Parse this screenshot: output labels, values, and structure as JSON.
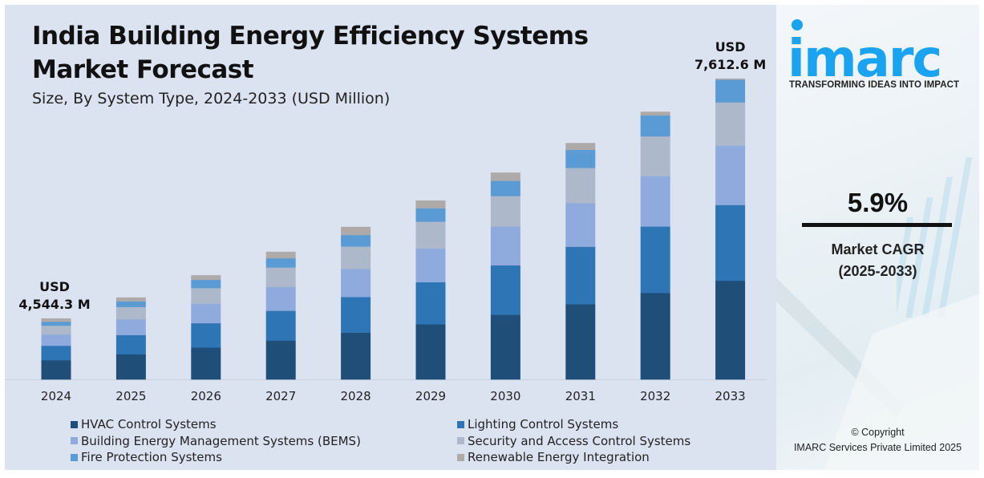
{
  "header": {
    "title": "India Building Energy Efficiency Systems Market Forecast",
    "subtitle": "Size, By System Type, 2024-2033 (USD Million)"
  },
  "branding": {
    "logo_text": "imarc",
    "tagline": "TRANSFORMING IDEAS INTO IMPACT",
    "logo_color": "#1aa3f0"
  },
  "cagr": {
    "value": "5.9%",
    "label_line1": "Market CAGR",
    "label_line2": "(2025-2033)"
  },
  "footer": {
    "copyright_line1": "© Copyright",
    "copyright_line2": "IMARC Services Private Limited 2025"
  },
  "chart_data": {
    "type": "bar",
    "stacked": true,
    "title": "India Building Energy Efficiency Systems Market Forecast",
    "subtitle": "Size, By System Type, 2024-2033 (USD Million)",
    "xlabel": "",
    "ylabel": "",
    "grid": false,
    "legend_position": "bottom",
    "categories": [
      "2024",
      "2025",
      "2026",
      "2027",
      "2028",
      "2029",
      "2030",
      "2031",
      "2032",
      "2033"
    ],
    "totals": [
      4544.3,
      4812.4,
      5096.3,
      5397.0,
      5715.5,
      6052.7,
      6409.8,
      6788.0,
      7188.5,
      7612.6
    ],
    "annotations": [
      {
        "category": "2024",
        "line1": "USD",
        "line2": "4,544.3 M"
      },
      {
        "category": "2033",
        "line1": "USD",
        "line2": "7,612.6 M"
      }
    ],
    "series": [
      {
        "name": "HVAC Control Systems",
        "color": "#1f4e79",
        "values": [
          1435,
          1479,
          1560,
          1644,
          1755,
          1869,
          2004,
          2160,
          2326,
          2498
        ]
      },
      {
        "name": "Lighting Control Systems",
        "color": "#2e75b6",
        "values": [
          1076,
          1128,
          1192,
          1258,
          1335,
          1421,
          1533,
          1650,
          1781,
          1916
        ]
      },
      {
        "name": "Building Energy Management Systems (BEMS)",
        "color": "#8faadc",
        "values": [
          837,
          929,
          954,
          1014,
          1055,
          1143,
          1202,
          1254,
          1357,
          1505
        ]
      },
      {
        "name": "Security and Access Control Systems",
        "color": "#adb9ca",
        "values": [
          658,
          717,
          763,
          819,
          836,
          906,
          946,
          1010,
          1066,
          1092
        ]
      },
      {
        "name": "Fire Protection Systems",
        "color": "#5b9bd5",
        "values": [
          299,
          332,
          405,
          387,
          432,
          452,
          471,
          519,
          560,
          574
        ]
      },
      {
        "name": "Renewable Energy Integration",
        "color": "#aeaaaa",
        "values": [
          239,
          227,
          222,
          275,
          303,
          262,
          254,
          195,
          99,
          28
        ]
      }
    ]
  }
}
